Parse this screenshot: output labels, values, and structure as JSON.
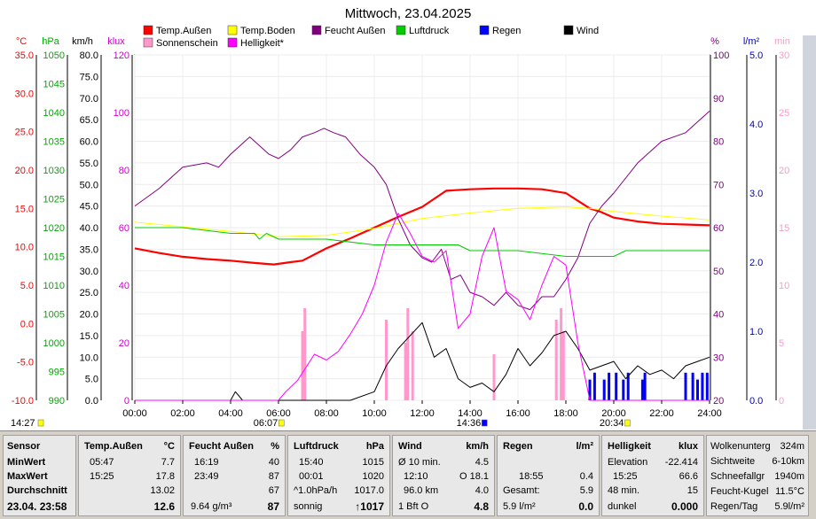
{
  "chart_data": {
    "type": "line",
    "title": "Mittwoch, 23.04.2025",
    "x_ticks": [
      "00:00",
      "02:00",
      "04:00",
      "06:00",
      "08:00",
      "10:00",
      "12:00",
      "14:00",
      "16:00",
      "18:00",
      "20:00",
      "22:00",
      "24:00"
    ],
    "x_range_hours": [
      0,
      24
    ],
    "axes": [
      {
        "unit": "°C",
        "min": -10,
        "max": 35,
        "ticks": [
          "35.0",
          "30.0",
          "25.0",
          "20.0",
          "15.0",
          "10.0",
          "5.0",
          "0.0",
          "-5.0",
          "-10.0"
        ],
        "color": "#ff0000"
      },
      {
        "unit": "hPa",
        "min": 990,
        "max": 1050,
        "ticks": [
          "1050",
          "1045",
          "1040",
          "1035",
          "1030",
          "1025",
          "1020",
          "1015",
          "1010",
          "1005",
          "1000",
          "995",
          "990"
        ],
        "color": "#00aa00"
      },
      {
        "unit": "km/h",
        "min": 0,
        "max": 80,
        "ticks": [
          "80.0",
          "75.0",
          "70.0",
          "65.0",
          "60.0",
          "55.0",
          "50.0",
          "45.0",
          "40.0",
          "35.0",
          "30.0",
          "25.0",
          "20.0",
          "15.0",
          "10.0",
          "5.0",
          "0.0"
        ],
        "color": "#000000"
      },
      {
        "unit": "klux",
        "min": 0,
        "max": 120,
        "ticks": [
          "120",
          "100",
          "80",
          "60",
          "40",
          "20",
          "0"
        ],
        "color": "#cc00cc"
      },
      {
        "unit": "%",
        "min": 20,
        "max": 100,
        "ticks": [
          "100",
          "90",
          "80",
          "70",
          "60",
          "50",
          "40",
          "30",
          "20"
        ],
        "color": "#800080"
      },
      {
        "unit": "l/m²",
        "min": 0,
        "max": 5,
        "ticks": [
          "5.0",
          "4.0",
          "3.0",
          "2.0",
          "1.0",
          "0.0"
        ],
        "color": "#0000cc"
      },
      {
        "unit": "min",
        "min": 0,
        "max": 30,
        "ticks": [
          "30",
          "25",
          "20",
          "15",
          "10",
          "5",
          "0"
        ],
        "color": "#ff99cc"
      }
    ],
    "legend": [
      {
        "name": "Temp.Außen",
        "color": "#ff0000"
      },
      {
        "name": "Temp.Boden",
        "color": "#ffff00"
      },
      {
        "name": "Feucht Außen",
        "color": "#800080"
      },
      {
        "name": "Luftdruck",
        "color": "#00cc00"
      },
      {
        "name": "Regen",
        "color": "#0000ff"
      },
      {
        "name": "Wind",
        "color": "#000000"
      },
      {
        "name": "Sonnenschein",
        "color": "#ff99cc"
      },
      {
        "name": "Helligkeit*",
        "color": "#ff00ff"
      }
    ],
    "series": [
      {
        "name": "Temp.Außen",
        "axis": "°C",
        "x": [
          0,
          1,
          2,
          3,
          4,
          5,
          5.8,
          6.5,
          7,
          8,
          9,
          10,
          11,
          12,
          13,
          14,
          15,
          16,
          17,
          18,
          18.5,
          19,
          19.5,
          20,
          21,
          22,
          23,
          24
        ],
        "values": [
          9.8,
          9.2,
          8.7,
          8.4,
          8.2,
          7.9,
          7.7,
          8.0,
          8.2,
          9.8,
          11.1,
          12.5,
          13.9,
          15.2,
          17.3,
          17.5,
          17.6,
          17.6,
          17.5,
          17.0,
          16.0,
          15.0,
          14.5,
          13.8,
          13.3,
          13.0,
          12.9,
          12.8
        ]
      },
      {
        "name": "Temp.Boden",
        "axis": "°C",
        "x": [
          0,
          2,
          4,
          6,
          8,
          10,
          12,
          14,
          16,
          18,
          19,
          20,
          22,
          24
        ],
        "values": [
          13.2,
          12.6,
          12.0,
          11.3,
          11.5,
          12.4,
          13.7,
          14.4,
          15.0,
          15.2,
          15.0,
          14.6,
          14.0,
          13.5
        ]
      },
      {
        "name": "Feucht Außen",
        "axis": "%",
        "x": [
          0,
          0.5,
          1,
          2,
          3,
          3.5,
          4,
          4.4,
          4.8,
          5.2,
          5.6,
          6,
          6.5,
          7,
          7.5,
          7.9,
          8.3,
          8.8,
          9.4,
          10,
          10.5,
          11,
          11.5,
          12,
          12.4,
          12.8,
          13.2,
          13.6,
          14,
          14.5,
          15,
          15.5,
          16,
          16.5,
          17,
          17.5,
          18,
          18.5,
          19,
          19.5,
          20,
          21,
          22,
          23,
          24
        ],
        "values": [
          65,
          67,
          69,
          74,
          75,
          74,
          77,
          79,
          81,
          79,
          77,
          76,
          78,
          81,
          82,
          83,
          82,
          81,
          77,
          74,
          70,
          62,
          56,
          53,
          52,
          55,
          48,
          49,
          45,
          44,
          42,
          45,
          42,
          41,
          44,
          44,
          48,
          53,
          61,
          65,
          68,
          75,
          80,
          82,
          87
        ]
      },
      {
        "name": "Luftdruck",
        "axis": "hPa",
        "x": [
          0,
          2,
          4,
          5,
          5.2,
          5.5,
          6,
          8,
          10,
          12,
          13.5,
          14,
          16,
          18,
          20,
          20.5,
          22,
          23.5,
          24
        ],
        "values": [
          1020,
          1020,
          1019,
          1019,
          1018,
          1019,
          1018,
          1018,
          1017,
          1017,
          1017,
          1016,
          1016,
          1015,
          1015,
          1016,
          1016,
          1016,
          1016
        ]
      },
      {
        "name": "Wind",
        "axis": "km/h",
        "x": [
          0,
          3,
          4,
          4.2,
          4.5,
          6,
          8,
          9,
          10,
          10.5,
          11,
          11.5,
          12,
          12.5,
          13,
          13.5,
          14,
          14.5,
          15,
          15.5,
          16,
          16.5,
          17,
          17.5,
          18,
          18.5,
          19,
          19.5,
          20,
          20.5,
          21,
          21.5,
          22,
          22.5,
          23,
          23.5,
          24
        ],
        "values": [
          0,
          0,
          0,
          2,
          0,
          0,
          0,
          0,
          2,
          8,
          12,
          15,
          18,
          10,
          12,
          5,
          3,
          4,
          2,
          6,
          12,
          8,
          11,
          15,
          16,
          12,
          7,
          8,
          9,
          5,
          8,
          6,
          7,
          5,
          8,
          9,
          10
        ]
      },
      {
        "name": "Helligkeit*",
        "axis": "klux",
        "x": [
          0,
          6,
          6.3,
          6.8,
          7.5,
          8,
          8.5,
          9,
          9.5,
          10,
          10.5,
          11,
          11.5,
          12,
          12.5,
          13,
          13.5,
          14,
          14.5,
          15,
          15.5,
          16,
          16.5,
          17,
          17.5,
          18,
          18.5,
          19,
          24
        ],
        "values": [
          0,
          0,
          3,
          7,
          16,
          14,
          17,
          23,
          30,
          40,
          55,
          65,
          58,
          50,
          48,
          52,
          25,
          30,
          50,
          60,
          38,
          35,
          28,
          40,
          50,
          47,
          20,
          0,
          0
        ]
      }
    ],
    "bars": [
      {
        "name": "Sonnenschein",
        "axis": "min",
        "x": [
          7.0,
          7.1,
          10.5,
          11.3,
          11.4,
          11.6,
          15.0,
          17.6,
          17.8,
          17.9
        ],
        "values": [
          6,
          8,
          7,
          5,
          8,
          6,
          4,
          7,
          8,
          6
        ]
      },
      {
        "name": "Regen",
        "axis": "l/m²",
        "x": [
          19.0,
          19.2,
          19.6,
          19.8,
          20.1,
          20.4,
          20.6,
          21.2,
          21.3,
          23.0,
          23.3,
          23.5,
          23.7,
          23.9
        ],
        "values": [
          0.3,
          0.4,
          0.3,
          0.4,
          0.4,
          0.3,
          0.4,
          0.3,
          0.4,
          0.4,
          0.4,
          0.3,
          0.4,
          0.4
        ]
      }
    ],
    "time_marks": [
      {
        "label": "14:27",
        "x": 0.0,
        "color": "#ffff00"
      },
      {
        "label": "06:07",
        "x": 6.12,
        "color": "#ffff00"
      },
      {
        "label": "14:36",
        "x": 14.6,
        "color": "#0000ff"
      },
      {
        "label": "20:34",
        "x": 20.57,
        "color": "#ffff00"
      }
    ]
  },
  "table": {
    "sensor": {
      "header": "Sensor",
      "rows": [
        "MinWert",
        "MaxWert",
        "Durchschnitt"
      ],
      "footer": "23.04. 23:58"
    },
    "temp": {
      "header": "Temp.Außen",
      "unit": "°C",
      "min_time": "05:47",
      "min": "7.7",
      "max_time": "15:25",
      "max": "17.8",
      "avg": "13.02",
      "current": "12.6"
    },
    "feucht": {
      "header": "Feucht Außen",
      "unit": "%",
      "min_time": "16:19",
      "min": "40",
      "max_time": "23:49",
      "max": "87",
      "avg": "67",
      "footer_note": "9.64 g/m³",
      "current": "87"
    },
    "druck": {
      "header": "Luftdruck",
      "unit": "hPa",
      "min_time": "15:40",
      "min": "1015",
      "max_time": "00:01",
      "max": "1020",
      "trend": "^1.0hPa/h",
      "avg": "1017.0",
      "footer_note": "sonnig",
      "current": "↑1017"
    },
    "wind": {
      "header": "Wind",
      "unit": "km/h",
      "r1_label": "Ø 10 min.",
      "r1": "4.5",
      "r2_label": "12:10",
      "r2": "O 18.1",
      "r3_label": "96.0 km",
      "r3": "4.0",
      "footer_note": "1 Bft O",
      "current": "4.8"
    },
    "regen": {
      "header": "Regen",
      "unit": "l/m²",
      "r2_label": "18:55",
      "r2": "0.4",
      "r3_label": "Gesamt:",
      "r3": "5.9",
      "footer_note": "5.9 l/m²",
      "current": "0.0"
    },
    "hell": {
      "header": "Helligkeit",
      "unit": "klux",
      "r1_label": "Elevation",
      "r1": "-22.414",
      "r2_label": "15:25",
      "r2": "66.6",
      "r3_label": "48 min.",
      "r3": "15",
      "footer_note": "dunkel",
      "current": "0.000"
    },
    "extra": [
      {
        "label": "Wolkenunterg",
        "value": "324m"
      },
      {
        "label": "Sichtweite",
        "value": "6-10km"
      },
      {
        "label": "Schneefallgr",
        "value": "1940m"
      },
      {
        "label": "Feucht-Kugel",
        "value": "11.5°C"
      },
      {
        "label": "Regen/Tag",
        "value": "5.9l/m²"
      }
    ]
  }
}
